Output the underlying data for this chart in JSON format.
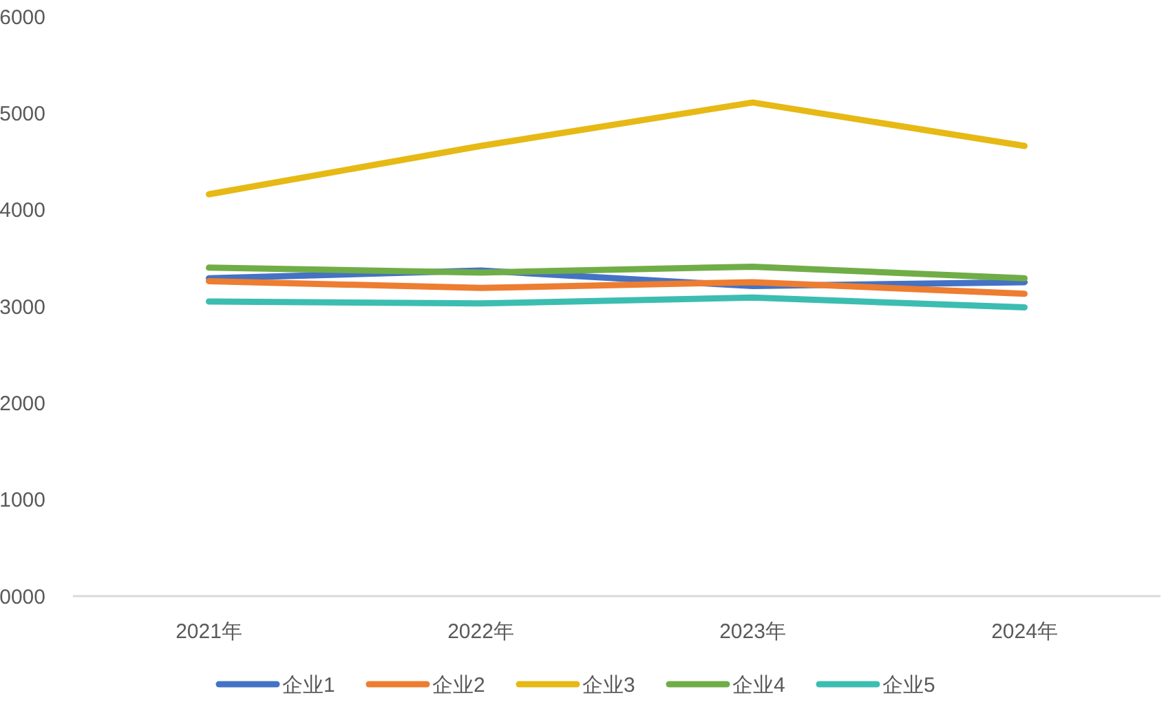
{
  "chart_data": {
    "type": "line",
    "categories": [
      "2021年",
      "2022年",
      "2023年",
      "2024年"
    ],
    "series": [
      {
        "name": "企业1",
        "color": "#4472c4",
        "values": [
          3290,
          3370,
          3210,
          3250
        ]
      },
      {
        "name": "企业2",
        "color": "#ed7d31",
        "values": [
          3260,
          3190,
          3250,
          3130
        ]
      },
      {
        "name": "企业3",
        "color": "#e6b914",
        "values": [
          4160,
          4660,
          5110,
          4660
        ]
      },
      {
        "name": "企业4",
        "color": "#70ad47",
        "values": [
          3400,
          3350,
          3410,
          3290
        ]
      },
      {
        "name": "企业5",
        "color": "#3cbdb1",
        "values": [
          3050,
          3030,
          3090,
          2990
        ]
      }
    ],
    "ylim": [
      0,
      6000
    ],
    "yticks": [
      {
        "value": 0,
        "label": "0000"
      },
      1000,
      2000,
      3000,
      4000,
      5000,
      6000
    ],
    "grid": false,
    "legend": "bottom",
    "line_style": "solid"
  }
}
